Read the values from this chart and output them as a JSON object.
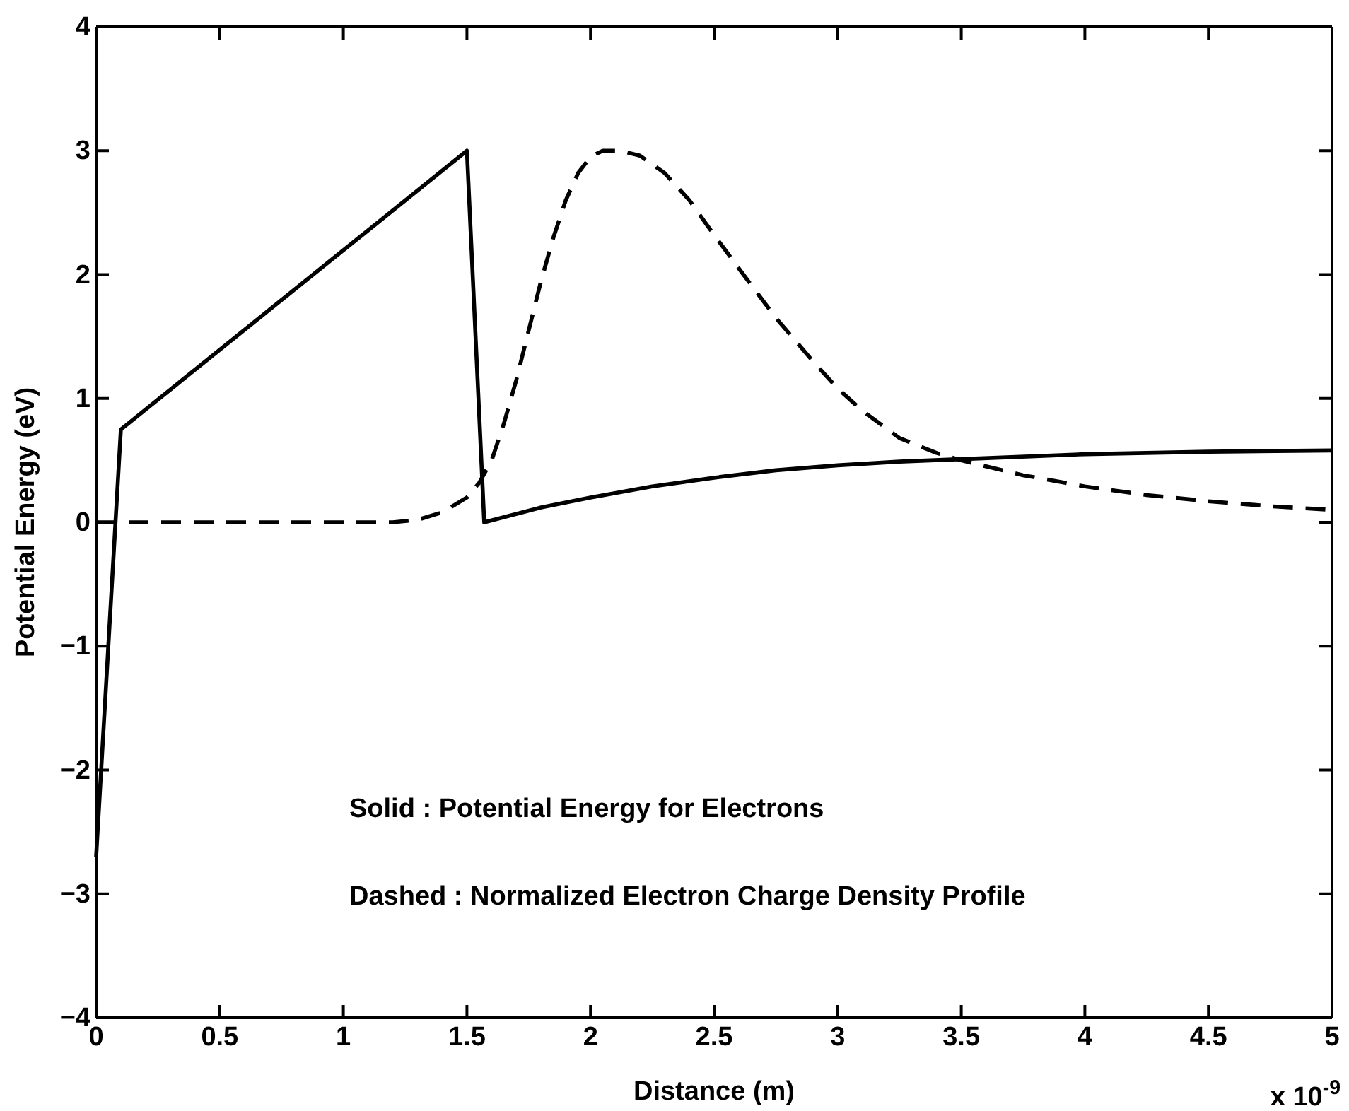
{
  "chart_data": {
    "type": "line",
    "xlabel": "Distance (m)",
    "ylabel": "Potential Energy (eV)",
    "annotations": [
      "Solid : Potential Energy for Electrons",
      "Dashed : Normalized Electron Charge Density Profile",
      "x 10$^{-9}$"
    ],
    "xlim": [
      0,
      5
    ],
    "ylim": [
      -4,
      4
    ],
    "xticks": [
      0,
      0.5,
      1,
      1.5,
      2,
      2.5,
      3,
      3.5,
      4,
      4.5,
      5
    ],
    "yticks": [
      -4,
      -3,
      -2,
      -1,
      0,
      1,
      2,
      3,
      4
    ],
    "marker": "none",
    "grid": false,
    "series": [
      {
        "color": "#000000",
        "line_style": "solid",
        "x": [
          0,
          0.1,
          1.5,
          1.57,
          1.8,
          2,
          2.25,
          2.5,
          2.75,
          3,
          3.25,
          3.5,
          4,
          4.5,
          5
        ],
        "values": [
          -2.7,
          0.75,
          3,
          0,
          0.12,
          0.2,
          0.29,
          0.36,
          0.42,
          0.46,
          0.49,
          0.51,
          0.55,
          0.57,
          0.58
        ]
      },
      {
        "color": "#000000",
        "line_style": "dashed",
        "x": [
          0,
          0.5,
          1,
          1.2,
          1.3,
          1.4,
          1.5,
          1.55,
          1.6,
          1.65,
          1.7,
          1.75,
          1.8,
          1.85,
          1.9,
          1.95,
          2,
          2.05,
          2.12,
          2.2,
          2.3,
          2.4,
          2.5,
          2.6,
          2.75,
          2.9,
          3,
          3.1,
          3.25,
          3.4,
          3.5,
          3.75,
          4,
          4.25,
          4.5,
          4.75,
          5
        ],
        "values": [
          0,
          0,
          0,
          0,
          0.02,
          0.08,
          0.2,
          0.32,
          0.5,
          0.8,
          1.15,
          1.55,
          1.95,
          2.3,
          2.6,
          2.82,
          2.95,
          3,
          3,
          2.96,
          2.82,
          2.6,
          2.32,
          2.05,
          1.65,
          1.3,
          1.08,
          0.9,
          0.68,
          0.56,
          0.5,
          0.38,
          0.29,
          0.22,
          0.17,
          0.13,
          0.1
        ]
      }
    ]
  }
}
